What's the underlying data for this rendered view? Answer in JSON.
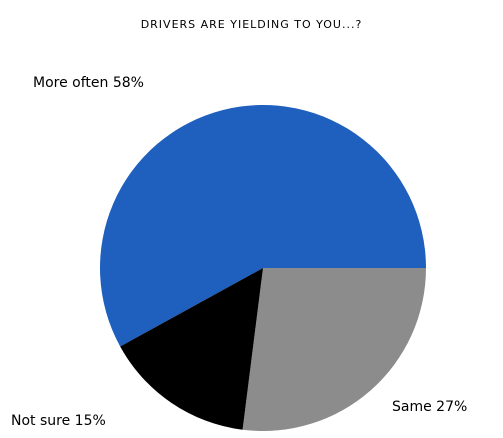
{
  "chart_data": {
    "type": "pie",
    "title": "DRIVERS ARE YIELDING TO YOU...?",
    "slices": [
      {
        "name": "More often",
        "value": 58,
        "label": "More often 58%",
        "color": "#1f5fbd"
      },
      {
        "name": "Same",
        "value": 27,
        "label": "Same 27%",
        "color": "#8c8c8c"
      },
      {
        "name": "Not sure",
        "value": 15,
        "label": "Not sure 15%",
        "color": "#000000"
      }
    ],
    "start_direction": "east, counterclockwise for first slice"
  }
}
